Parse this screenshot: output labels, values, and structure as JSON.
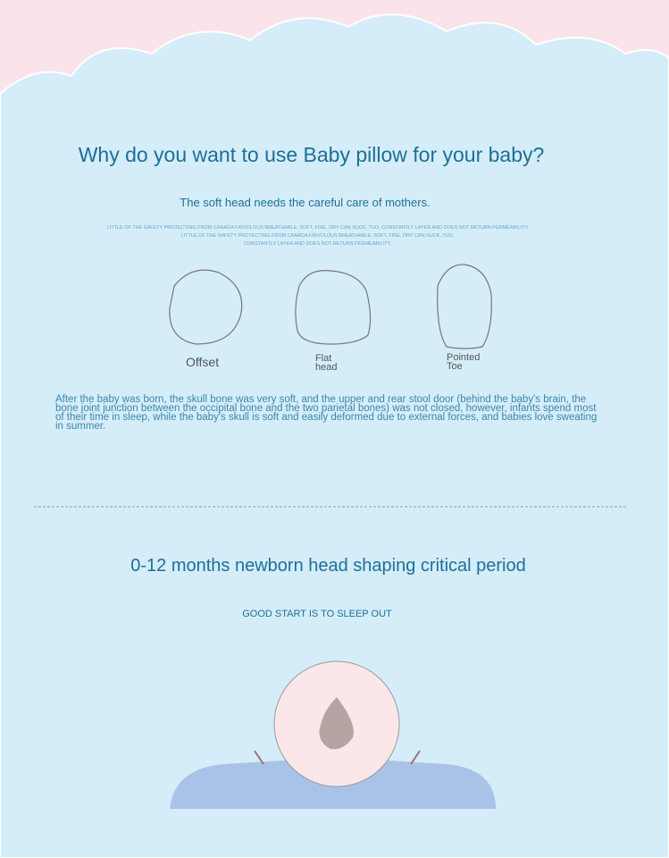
{
  "header": {
    "title": "Why do you want to use Baby pillow for your baby?",
    "subtitle": "The soft head needs the careful care of mothers.",
    "fine_print": [
      "LITTLE OF THE SAFETY PROTECTING FROM CANADA FRIVOLOUS BREATHABLE, SOFT, FINE, DRY CAN SUCK, TUO, CONSTANTLY LAYER AND DOES NOT RETURN PERMEABILITY",
      "LITTLE OF THE SAFETY PROTECTING FROM CANADA FRIVOLOUS BREATHABLE, SOFT, FINE, DRY CAN SUCK, TUO,",
      "CONSTANTLY LAYER AND DOES NOT RETURN PERMEABILITY."
    ]
  },
  "head_shapes": [
    "Offset",
    "Flat head",
    "Pointed Toe"
  ],
  "paragraph": "After the baby was born, the skull bone was very soft, and the upper and rear stool door (behind the baby's brain, the bone joint junction between the occipital bone and the two parietal bones) was not closed, however, infants spend most of their time in sleep, while the baby's skull is soft and easily deformed due to external forces, and babies love sweating in summer.",
  "section2": {
    "title": "0-12 months newborn head shaping critical period",
    "subtitle": "GOOD START IS TO SLEEP OUT"
  }
}
